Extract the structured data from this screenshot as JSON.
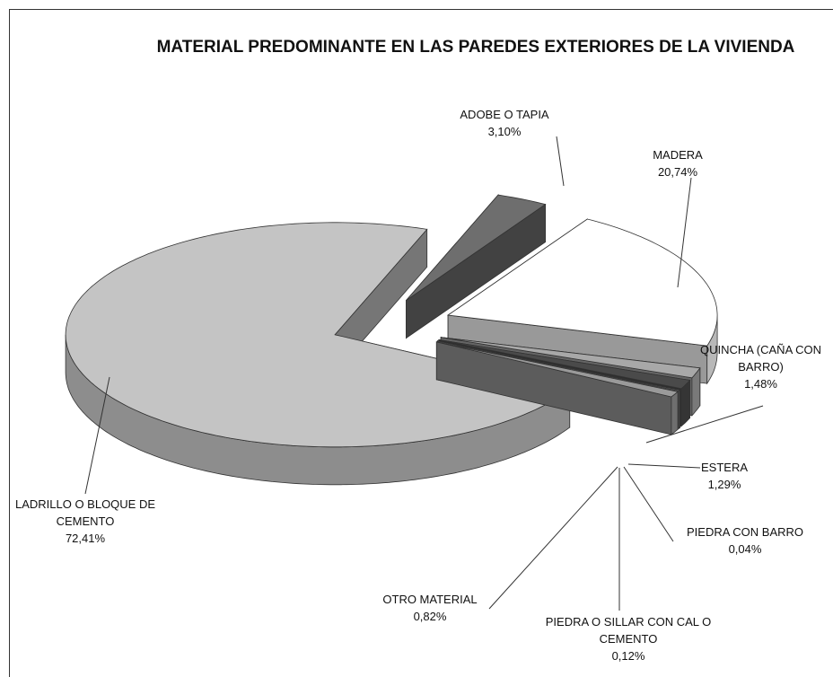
{
  "chart_data": {
    "type": "pie",
    "title": "MATERIAL PREDOMINANTE EN LAS PAREDES EXTERIORES DE LA VIVIENDA",
    "categories": [
      "ADOBE O TAPIA",
      "MADERA",
      "QUINCHA (CAÑA CON BARRO)",
      "ESTERA",
      "PIEDRA CON BARRO",
      "PIEDRA O SILLAR CON CAL O CEMENTO",
      "OTRO MATERIAL",
      "LADRILLO O BLOQUE DE CEMENTO"
    ],
    "values": [
      3.1,
      20.74,
      1.48,
      1.29,
      0.04,
      0.12,
      0.82,
      72.41
    ],
    "value_labels": [
      "3,10%",
      "20,74%",
      "1,48%",
      "1,29%",
      "0,04%",
      "0,12%",
      "0,82%",
      "72,41%"
    ],
    "colors": [
      "#6e6e6e",
      "#ffffff",
      "#a8a8a8",
      "#4a4a4a",
      "#808080",
      "#bdbdbd",
      "#9a9a9a",
      "#c4c4c4"
    ]
  }
}
